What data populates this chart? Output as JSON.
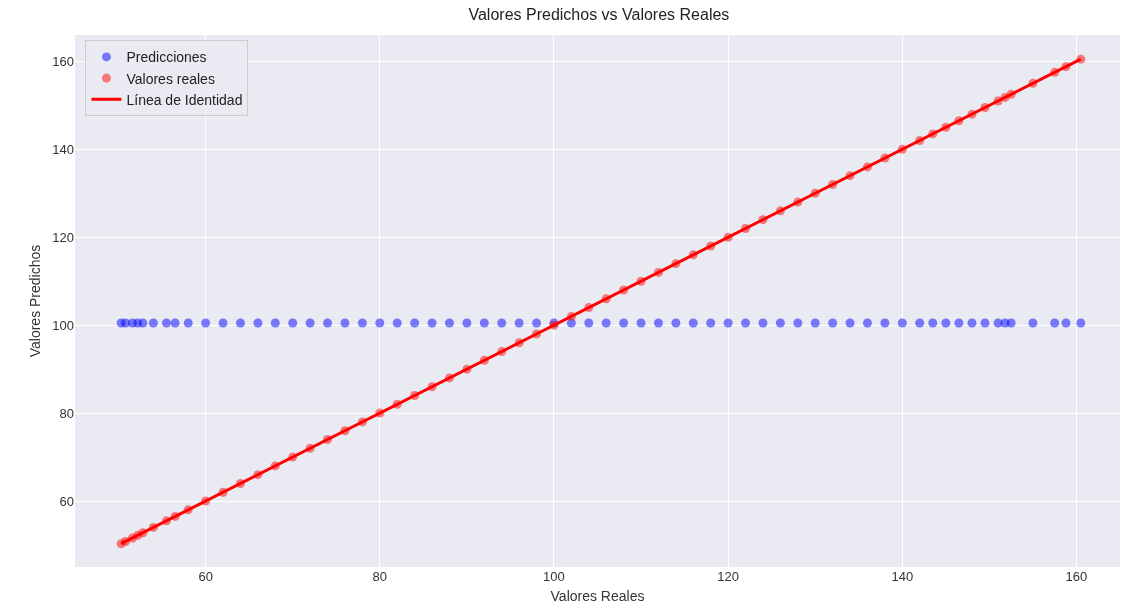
{
  "chart_data": {
    "type": "scatter",
    "title": "Valores Predichos vs Valores Reales",
    "xlabel": "Valores Reales",
    "ylabel": "Valores Predichos",
    "xlim": [
      45,
      165
    ],
    "ylim": [
      45,
      166
    ],
    "xticks": [
      60,
      80,
      100,
      120,
      140,
      160
    ],
    "yticks": [
      60,
      80,
      100,
      120,
      140,
      160
    ],
    "grid": true,
    "legend": "top left",
    "series": [
      {
        "name": "Predicciones",
        "marker": "circle",
        "color": "#0000ff",
        "x": [
          50.3,
          50.8,
          51.6,
          52.2,
          52.8,
          54,
          55.5,
          56.5,
          58,
          60,
          62,
          64,
          66,
          68,
          70,
          72,
          74,
          76,
          78,
          80,
          82,
          84,
          86,
          88,
          90,
          92,
          94,
          96,
          98,
          100,
          102,
          104,
          106,
          108,
          110,
          112,
          114,
          116,
          118,
          120,
          122,
          124,
          126,
          128,
          130,
          132,
          134,
          136,
          138,
          140,
          142,
          143.5,
          145,
          146.5,
          148,
          149.5,
          151,
          151.8,
          152.5,
          155,
          157.5,
          158.8,
          160.5
        ],
        "values": [
          100.5,
          100.5,
          100.5,
          100.5,
          100.5,
          100.5,
          100.5,
          100.5,
          100.5,
          100.5,
          100.5,
          100.5,
          100.5,
          100.5,
          100.5,
          100.5,
          100.5,
          100.5,
          100.5,
          100.5,
          100.5,
          100.5,
          100.5,
          100.5,
          100.5,
          100.5,
          100.5,
          100.5,
          100.5,
          100.5,
          100.5,
          100.5,
          100.5,
          100.5,
          100.5,
          100.5,
          100.5,
          100.5,
          100.5,
          100.5,
          100.5,
          100.5,
          100.5,
          100.5,
          100.5,
          100.5,
          100.5,
          100.5,
          100.5,
          100.5,
          100.5,
          100.5,
          100.5,
          100.5,
          100.5,
          100.5,
          100.5,
          100.5,
          100.5,
          100.5,
          100.5,
          100.5,
          100.5
        ]
      },
      {
        "name": "Valores reales",
        "marker": "circle",
        "color": "#ff0000",
        "x": [
          50.3,
          50.8,
          51.6,
          52.2,
          52.8,
          54,
          55.5,
          56.5,
          58,
          60,
          62,
          64,
          66,
          68,
          70,
          72,
          74,
          76,
          78,
          80,
          82,
          84,
          86,
          88,
          90,
          92,
          94,
          96,
          98,
          100,
          102,
          104,
          106,
          108,
          110,
          112,
          114,
          116,
          118,
          120,
          122,
          124,
          126,
          128,
          130,
          132,
          134,
          136,
          138,
          140,
          142,
          143.5,
          145,
          146.5,
          148,
          149.5,
          151,
          151.8,
          152.5,
          155,
          157.5,
          158.8,
          160.5
        ],
        "values": [
          50.3,
          50.8,
          51.6,
          52.2,
          52.8,
          54,
          55.5,
          56.5,
          58,
          60,
          62,
          64,
          66,
          68,
          70,
          72,
          74,
          76,
          78,
          80,
          82,
          84,
          86,
          88,
          90,
          92,
          94,
          96,
          98,
          100,
          102,
          104,
          106,
          108,
          110,
          112,
          114,
          116,
          118,
          120,
          122,
          124,
          126,
          128,
          130,
          132,
          134,
          136,
          138,
          140,
          142,
          143.5,
          145,
          146.5,
          148,
          149.5,
          151,
          151.8,
          152.5,
          155,
          157.5,
          158.8,
          160.5
        ]
      },
      {
        "name": "Línea de Identidad",
        "type": "line",
        "marker": "none",
        "color": "#ff0000",
        "line_style": "solid",
        "x": [
          50.3,
          160.5
        ],
        "values": [
          50.3,
          160.5
        ]
      }
    ]
  }
}
